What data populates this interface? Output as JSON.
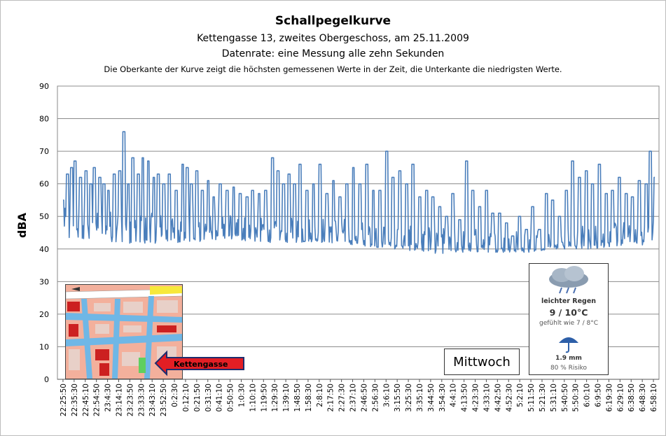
{
  "header": {
    "title": "Schallpegelkurve",
    "subtitle_location": "Kettengasse 13, zweites Obergeschoss, am 25.11.2009",
    "subtitle_rate": "Datenrate: eine Messung alle zehn Sekunden",
    "note": "Die Oberkante der Kurve zeigt die höchsten gemessenen Werte  in der Zeit, die Unterkante  die niedrigsten Werte."
  },
  "map_inset": {
    "label": "Kettengasse",
    "arrow_color": "#e31e24"
  },
  "day_label": "Mittwoch",
  "weather": {
    "icon": "rain-cloud-icon",
    "description": "leichter Regen",
    "temperature": "9 / 10°C",
    "feels_like": "gefühlt wie 7 / 8°C",
    "umbrella_icon": "umbrella-icon",
    "precipitation": "1.9 mm",
    "risk": "80 % Risiko"
  },
  "chart_data": {
    "type": "line",
    "title": "Schallpegelkurve",
    "ylabel": "dBA",
    "xlabel": "",
    "ylim": [
      0,
      90
    ],
    "yticks": [
      0,
      10,
      20,
      30,
      40,
      50,
      60,
      70,
      80,
      90
    ],
    "grid": true,
    "legend": "none",
    "series_color": "#4a7ebb",
    "x_tick_labels": [
      "22:25:50",
      "22:35:30",
      "22:45:10",
      "22:54:50",
      "23:4:30",
      "23:14:10",
      "23:23:50",
      "23:33:30",
      "23:43:10",
      "23:52:50",
      "0:2:30",
      "0:12:10",
      "0:21:50",
      "0:31:30",
      "0:41:10",
      "0:50:50",
      "1:0:30",
      "1:10:10",
      "1:19:50",
      "1:29:30",
      "1:39:10",
      "1:48:50",
      "1:58:30",
      "2:8:10",
      "2:17:50",
      "2:27:30",
      "2:37:10",
      "2:46:50",
      "2:56:30",
      "3:6:10",
      "3:15:50",
      "3:25:30",
      "3:35:10",
      "3:44:50",
      "3:54:30",
      "4:4:10",
      "4:13:50",
      "4:23:30",
      "4:33:10",
      "4:42:50",
      "4:52:30",
      "5:2:10",
      "5:11:50",
      "5:21:30",
      "5:31:10",
      "5:40:50",
      "5:50:30",
      "6:0:10",
      "6:9:50",
      "6:19:30",
      "6:29:10",
      "6:38:50",
      "6:48:30",
      "6:58:10"
    ],
    "series": [
      {
        "peaks": [
          [
            0.0,
            55
          ],
          [
            0.4,
            63
          ],
          [
            0.8,
            65
          ],
          [
            1.1,
            67
          ],
          [
            1.6,
            62
          ],
          [
            2.1,
            64
          ],
          [
            2.5,
            60
          ],
          [
            2.8,
            65
          ],
          [
            3.3,
            62
          ],
          [
            3.7,
            60
          ],
          [
            4.1,
            58
          ],
          [
            4.6,
            63
          ],
          [
            5.1,
            64
          ],
          [
            5.5,
            76
          ],
          [
            5.9,
            60
          ],
          [
            6.3,
            68
          ],
          [
            6.8,
            63
          ],
          [
            7.2,
            68
          ],
          [
            7.7,
            67
          ],
          [
            8.2,
            62
          ],
          [
            8.6,
            63
          ],
          [
            9.1,
            60
          ],
          [
            9.6,
            63
          ],
          [
            10.2,
            58
          ],
          [
            10.8,
            66
          ],
          [
            11.2,
            65
          ],
          [
            11.6,
            60
          ],
          [
            12.1,
            64
          ],
          [
            12.6,
            58
          ],
          [
            13.1,
            61
          ],
          [
            13.6,
            56
          ],
          [
            14.2,
            60
          ],
          [
            14.8,
            58
          ],
          [
            15.4,
            59
          ],
          [
            16.0,
            57
          ],
          [
            16.6,
            56
          ],
          [
            17.1,
            58
          ],
          [
            17.7,
            57
          ],
          [
            18.3,
            58
          ],
          [
            18.9,
            68
          ],
          [
            19.4,
            64
          ],
          [
            19.9,
            60
          ],
          [
            20.4,
            63
          ],
          [
            20.9,
            60
          ],
          [
            21.4,
            66
          ],
          [
            22.0,
            58
          ],
          [
            22.6,
            60
          ],
          [
            23.2,
            66
          ],
          [
            23.8,
            57
          ],
          [
            24.4,
            61
          ],
          [
            25.0,
            56
          ],
          [
            25.6,
            60
          ],
          [
            26.2,
            65
          ],
          [
            26.8,
            60
          ],
          [
            27.4,
            66
          ],
          [
            28.0,
            58
          ],
          [
            28.6,
            58
          ],
          [
            29.2,
            70
          ],
          [
            29.8,
            62
          ],
          [
            30.4,
            64
          ],
          [
            31.0,
            60
          ],
          [
            31.6,
            66
          ],
          [
            32.2,
            56
          ],
          [
            32.8,
            58
          ],
          [
            33.4,
            56
          ],
          [
            34.0,
            53
          ],
          [
            34.6,
            50
          ],
          [
            35.2,
            57
          ],
          [
            35.8,
            49
          ],
          [
            36.4,
            67
          ],
          [
            37.0,
            58
          ],
          [
            37.6,
            53
          ],
          [
            38.2,
            58
          ],
          [
            38.8,
            51
          ],
          [
            39.4,
            51
          ],
          [
            40.0,
            48
          ],
          [
            40.6,
            44
          ],
          [
            41.2,
            50
          ],
          [
            41.8,
            46
          ],
          [
            42.4,
            53
          ],
          [
            43.0,
            46
          ],
          [
            43.6,
            57
          ],
          [
            44.2,
            55
          ],
          [
            44.8,
            50
          ],
          [
            45.4,
            58
          ],
          [
            46.0,
            67
          ],
          [
            46.6,
            62
          ],
          [
            47.2,
            64
          ],
          [
            47.8,
            60
          ],
          [
            48.4,
            66
          ],
          [
            49.0,
            57
          ],
          [
            49.6,
            58
          ],
          [
            50.2,
            62
          ],
          [
            50.8,
            57
          ],
          [
            51.4,
            56
          ],
          [
            52.0,
            61
          ],
          [
            52.6,
            60
          ],
          [
            53.0,
            70
          ],
          [
            53.4,
            62
          ]
        ],
        "troughs": [
          [
            0.0,
            42
          ],
          [
            3.0,
            43
          ],
          [
            6.0,
            41
          ],
          [
            9.0,
            42
          ],
          [
            12.0,
            42
          ],
          [
            15.0,
            43
          ],
          [
            18.0,
            42
          ],
          [
            21.0,
            42
          ],
          [
            24.0,
            42
          ],
          [
            27.0,
            41
          ],
          [
            30.0,
            40
          ],
          [
            33.0,
            39
          ],
          [
            34.0,
            38
          ],
          [
            36.0,
            39
          ],
          [
            39.0,
            39
          ],
          [
            42.0,
            39
          ],
          [
            44.0,
            40
          ],
          [
            46.0,
            40
          ],
          [
            48.0,
            40
          ],
          [
            50.0,
            41
          ],
          [
            52.0,
            41
          ],
          [
            53.4,
            42
          ]
        ],
        "mean_level": [
          [
            0.0,
            47
          ],
          [
            5.0,
            46
          ],
          [
            10.0,
            45
          ],
          [
            15.0,
            45
          ],
          [
            20.0,
            44
          ],
          [
            25.0,
            44
          ],
          [
            29.0,
            42
          ],
          [
            33.0,
            41
          ],
          [
            36.0,
            41
          ],
          [
            40.0,
            40
          ],
          [
            44.0,
            41
          ],
          [
            48.0,
            42
          ],
          [
            53.4,
            44
          ]
        ]
      }
    ]
  }
}
